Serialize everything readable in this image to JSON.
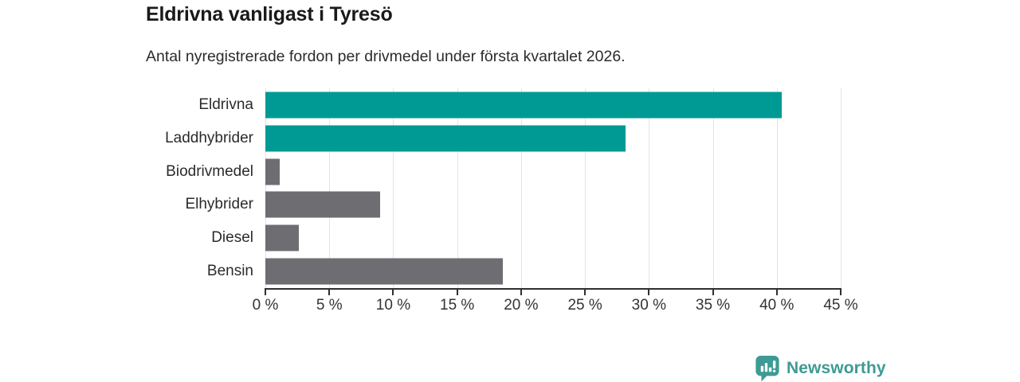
{
  "header": {
    "title": "Eldrivna vanligast i Tyresö",
    "subtitle": "Antal nyregistrerade fordon per drivmedel under första kvartalet 2026."
  },
  "chart_data": {
    "type": "bar",
    "orientation": "horizontal",
    "title": "Eldrivna vanligast i Tyresö",
    "subtitle": "Antal nyregistrerade fordon per drivmedel under första kvartalet 2026.",
    "categories": [
      "Eldrivna",
      "Laddhybrider",
      "Biodrivmedel",
      "Elhybrider",
      "Diesel",
      "Bensin"
    ],
    "values": [
      40.4,
      28.2,
      1.1,
      9.0,
      2.6,
      18.6
    ],
    "unit": "%",
    "bar_colors": [
      "#009a94",
      "#009a94",
      "#6d6d72",
      "#6d6d72",
      "#6d6d72",
      "#6d6d72"
    ],
    "xlabel": "",
    "ylabel": "",
    "xlim": [
      0,
      45
    ],
    "xticks": [
      0,
      5,
      10,
      15,
      20,
      25,
      30,
      35,
      40,
      45
    ],
    "xtick_suffix": " %",
    "grid": true,
    "legend": false
  },
  "colors": {
    "highlight": "#009a94",
    "default_bar": "#6d6d72",
    "gridline": "#e4e4e4",
    "axis": "#2f2f2f",
    "text": "#2b2b2b",
    "brand_teal": "#3e9a94"
  },
  "branding": {
    "name": "Newsworthy"
  }
}
